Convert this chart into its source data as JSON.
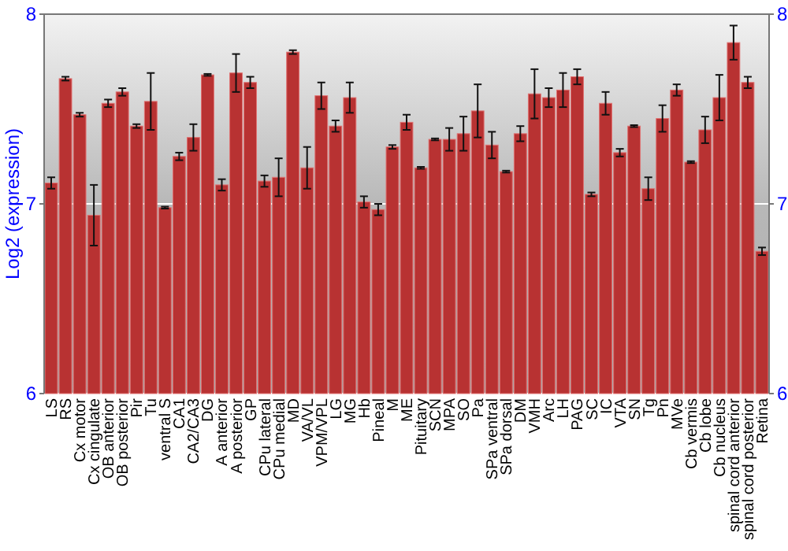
{
  "chart_data": {
    "type": "bar",
    "ylabel": "Log2 (expression)",
    "categories": [
      "LS",
      "RS",
      "Cx motor",
      "Cx cingulate",
      "OB anterior",
      "OB posterior",
      "Pir",
      "Tu",
      "ventral S",
      "CA1",
      "CA2/CA3",
      "DG",
      "A anterior",
      "A posterior",
      "GP",
      "CPu lateral",
      "CPu medial",
      "MD",
      "VA/VL",
      "VPM/VPL",
      "LG",
      "MG",
      "Hb",
      "Pineal",
      "M",
      "ME",
      "Pituitary",
      "SCN",
      "MPA",
      "SO",
      "Pa",
      "SPa ventral",
      "SPa dorsal",
      "DM",
      "VMH",
      "Arc",
      "LH",
      "PAG",
      "SC",
      "IC",
      "VTA",
      "SN",
      "Tg",
      "Pn",
      "MVe",
      "Cb vermis",
      "Cb lobe",
      "Cb nucleus",
      "spinal cord anterior",
      "spinal cord posterior",
      "Retina"
    ],
    "values": [
      7.11,
      7.66,
      7.47,
      6.94,
      7.53,
      7.59,
      7.41,
      7.54,
      6.98,
      7.25,
      7.35,
      7.68,
      7.1,
      7.69,
      7.64,
      7.12,
      7.14,
      7.8,
      7.19,
      7.57,
      7.41,
      7.56,
      7.01,
      6.97,
      7.3,
      7.43,
      7.19,
      7.34,
      7.34,
      7.37,
      7.49,
      7.31,
      7.17,
      7.37,
      7.58,
      7.56,
      7.6,
      7.67,
      7.05,
      7.53,
      7.27,
      7.41,
      7.08,
      7.45,
      7.6,
      7.22,
      7.39,
      7.56,
      7.85,
      7.64,
      6.75
    ],
    "errors": [
      0.03,
      0.01,
      0.01,
      0.16,
      0.02,
      0.02,
      0.01,
      0.15,
      0.005,
      0.02,
      0.07,
      0.005,
      0.03,
      0.1,
      0.03,
      0.03,
      0.1,
      0.01,
      0.11,
      0.07,
      0.03,
      0.08,
      0.03,
      0.03,
      0.01,
      0.04,
      0.005,
      0.005,
      0.06,
      0.09,
      0.14,
      0.07,
      0.005,
      0.04,
      0.13,
      0.05,
      0.09,
      0.04,
      0.01,
      0.06,
      0.02,
      0.005,
      0.06,
      0.07,
      0.03,
      0.005,
      0.07,
      0.12,
      0.09,
      0.03,
      0.02
    ],
    "color": "#b83232",
    "ylim": [
      6,
      8
    ],
    "yticks": [
      6,
      7,
      8
    ],
    "y2lim": [
      6,
      8
    ],
    "y2ticks": [
      6,
      7,
      8
    ],
    "grid": "y"
  }
}
